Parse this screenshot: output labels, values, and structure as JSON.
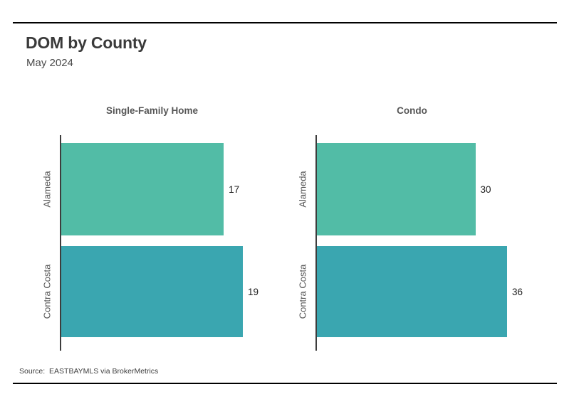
{
  "header": {
    "title": "DOM by County",
    "subtitle": "May 2024"
  },
  "footer": {
    "source": "Source:  EASTBAYMLS via BrokerMetrics"
  },
  "styles": {
    "bar_green": "#52bca6",
    "bar_teal": "#3aa6b0",
    "axis_color": "#3d3d3d",
    "rule_color": "#000000",
    "title_color": "#3a3a3a",
    "label_color": "#565656",
    "value_color": "#1c1c1c"
  },
  "chart_data": [
    {
      "type": "bar",
      "orientation": "horizontal",
      "title": "Single-Family Home",
      "categories": [
        "Alameda",
        "Contra Costa"
      ],
      "values": [
        17,
        19
      ],
      "colors": [
        "#52bca6",
        "#3aa6b0"
      ],
      "xlim": [
        0,
        19
      ],
      "xlabel": "",
      "ylabel": "",
      "grid": false,
      "legend": false
    },
    {
      "type": "bar",
      "orientation": "horizontal",
      "title": "Condo",
      "categories": [
        "Alameda",
        "Contra Costa"
      ],
      "values": [
        30,
        36
      ],
      "colors": [
        "#52bca6",
        "#3aa6b0"
      ],
      "xlim": [
        0,
        36
      ],
      "xlabel": "",
      "ylabel": "",
      "grid": false,
      "legend": false
    }
  ]
}
